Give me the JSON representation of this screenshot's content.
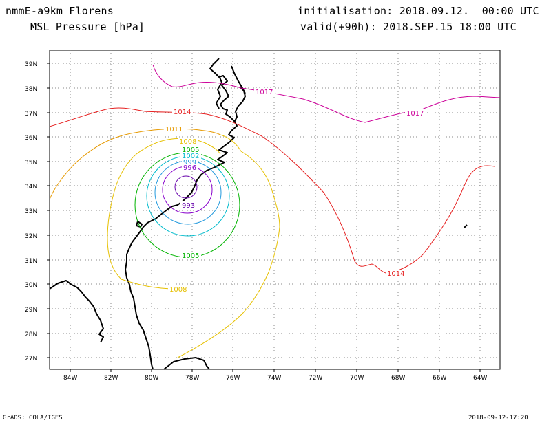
{
  "header": {
    "model": "nmmE-a9km_Florens",
    "field": "MSL Pressure [hPa]",
    "init": "initialisation: 2018.09.12.  00:00 UTC",
    "valid": "valid(+90h): 2018.SEP.15 18:00 UTC"
  },
  "footer": {
    "credit": "GrADS: COLA/IGES",
    "timestamp": "2018-09-12-17:20"
  },
  "axes": {
    "lat_labels": [
      "39N",
      "38N",
      "37N",
      "36N",
      "35N",
      "34N",
      "33N",
      "32N",
      "31N",
      "30N",
      "29N",
      "28N",
      "27N"
    ],
    "lon_labels": [
      "84W",
      "82W",
      "80W",
      "78W",
      "76W",
      "74W",
      "72W",
      "70W",
      "68W",
      "66W",
      "64W"
    ]
  },
  "contour_labels": {
    "c1017a": "1017",
    "c1017b": "1017",
    "c1014a": "1014",
    "c1014b": "1014",
    "c1011": "1011",
    "c1008a": "1008",
    "c1008b": "1008",
    "c1005a": "1005",
    "c1005b": "1005",
    "c1002": "1002",
    "c999": "999",
    "c996": "996",
    "c993": "993"
  },
  "colors": {
    "c1017": "#cc0099",
    "c1014": "#e62020",
    "c1011": "#e69900",
    "c1008": "#e6c000",
    "c1005": "#00b300",
    "c1002": "#00bbcc",
    "c999": "#2299dd",
    "c996": "#8800cc",
    "c993": "#6600aa"
  }
}
